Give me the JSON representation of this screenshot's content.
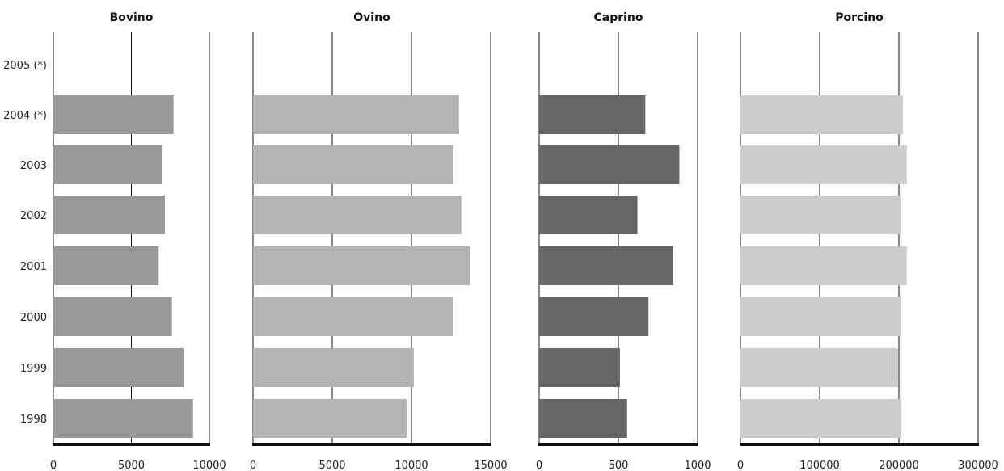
{
  "chart_data": [
    {
      "type": "bar",
      "orientation": "horizontal",
      "title": "Bovino",
      "categories": [
        "2005 (*)",
        "2004 (*)",
        "2003",
        "2002",
        "2001",
        "2000",
        "1999",
        "1998"
      ],
      "values": [
        null,
        7700,
        6950,
        7150,
        6750,
        7600,
        8350,
        8950
      ],
      "xlim": [
        0,
        10000
      ],
      "xticks": [
        "0",
        "5000",
        "10000"
      ],
      "color": "#999999",
      "grid": true
    },
    {
      "type": "bar",
      "orientation": "horizontal",
      "title": "Ovino",
      "categories": [
        "2005 (*)",
        "2004 (*)",
        "2003",
        "2002",
        "2001",
        "2000",
        "1999",
        "1998"
      ],
      "values": [
        null,
        13000,
        12650,
        13150,
        13700,
        12650,
        10150,
        9700
      ],
      "xlim": [
        0,
        15000
      ],
      "xticks": [
        "0",
        "5000",
        "10000",
        "15000"
      ],
      "color": "#b3b3b3",
      "grid": true
    },
    {
      "type": "bar",
      "orientation": "horizontal",
      "title": "Caprino",
      "categories": [
        "2005 (*)",
        "2004 (*)",
        "2003",
        "2002",
        "2001",
        "2000",
        "1999",
        "1998"
      ],
      "values": [
        null,
        670,
        885,
        620,
        845,
        690,
        510,
        555
      ],
      "xlim": [
        0,
        1000
      ],
      "xticks": [
        "0",
        "500",
        "1000"
      ],
      "color": "#666666",
      "grid": true
    },
    {
      "type": "bar",
      "orientation": "horizontal",
      "title": "Porcino",
      "categories": [
        "2005 (*)",
        "2004 (*)",
        "2003",
        "2002",
        "2001",
        "2000",
        "1999",
        "1998"
      ],
      "values": [
        null,
        205000,
        210000,
        202000,
        210000,
        202000,
        199000,
        203000
      ],
      "xlim": [
        0,
        300000
      ],
      "xticks": [
        "0",
        "100000",
        "200000",
        "300000"
      ],
      "color": "#cccccc",
      "grid": true
    }
  ]
}
